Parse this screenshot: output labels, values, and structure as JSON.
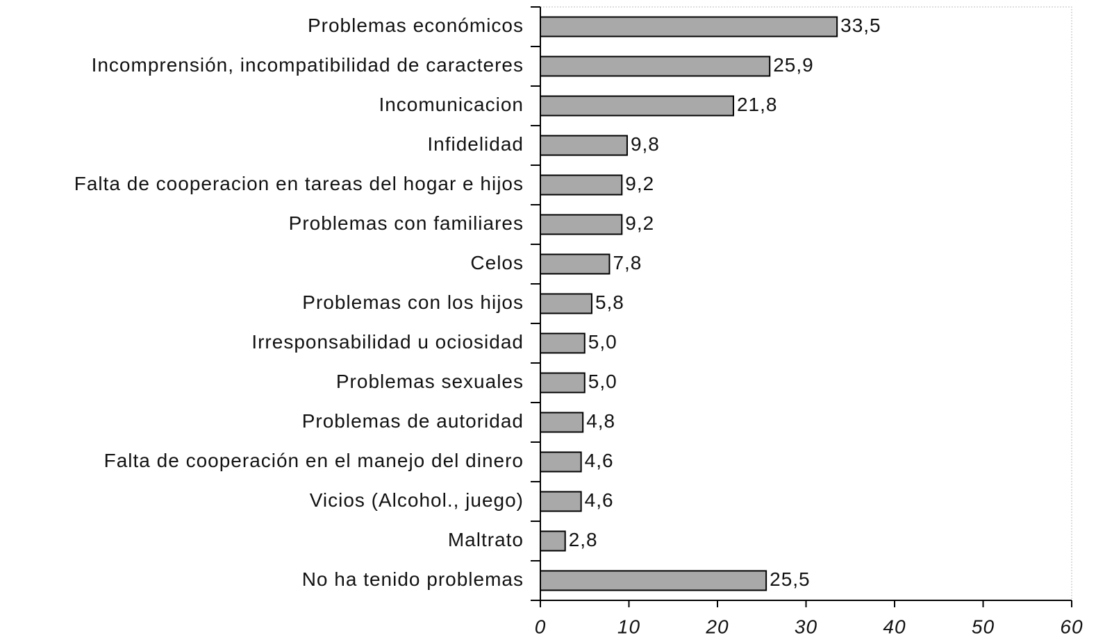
{
  "chart_data": {
    "type": "bar",
    "orientation": "horizontal",
    "categories": [
      "Problemas económicos",
      "Incomprensión, incompatibilidad de caracteres",
      "Incomunicacion",
      "Infidelidad",
      "Falta de cooperacion en tareas del hogar e hijos",
      "Problemas con familiares",
      "Celos",
      "Problemas con los hijos",
      "Irresponsabilidad u ociosidad",
      "Problemas sexuales",
      "Problemas de autoridad",
      "Falta de cooperación en el manejo del dinero",
      "Vicios (Alcohol., juego)",
      "Maltrato",
      "No ha tenido problemas"
    ],
    "values": [
      33.5,
      25.9,
      21.8,
      9.8,
      9.2,
      9.2,
      7.8,
      5.8,
      5.0,
      5.0,
      4.8,
      4.6,
      4.6,
      2.8,
      25.5
    ],
    "value_labels": [
      "33,5",
      "25,9",
      "21,8",
      "9,8",
      "9,2",
      "9,2",
      "7,8",
      "5,8",
      "5,0",
      "5,0",
      "4,8",
      "4,6",
      "4,6",
      "2,8",
      "25,5"
    ],
    "color": "#a9a9a9",
    "xlim": [
      0,
      60
    ],
    "xticks": [
      0,
      10,
      20,
      30,
      40,
      50,
      60
    ]
  }
}
